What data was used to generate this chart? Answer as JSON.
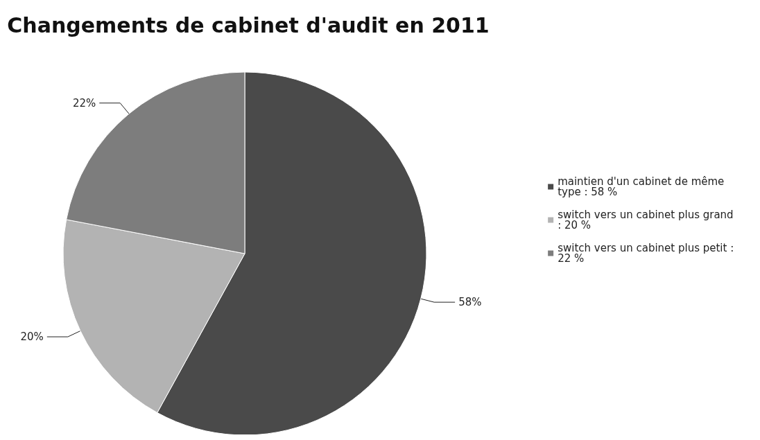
{
  "chart_data": {
    "type": "pie",
    "title": "Changements de cabinet d'audit en 2011",
    "categories": [
      "maintien d'un cabinet de même type : 58 %",
      "switch vers un cabinet plus grand : 20 %",
      "switch vers un cabinet plus petit : 22 %"
    ],
    "values": [
      58,
      20,
      22
    ],
    "colors": [
      "#4a4a4a",
      "#b3b3b3",
      "#7d7d7d"
    ],
    "value_labels": [
      "58%",
      "20%",
      "22%"
    ],
    "legend": "right"
  }
}
